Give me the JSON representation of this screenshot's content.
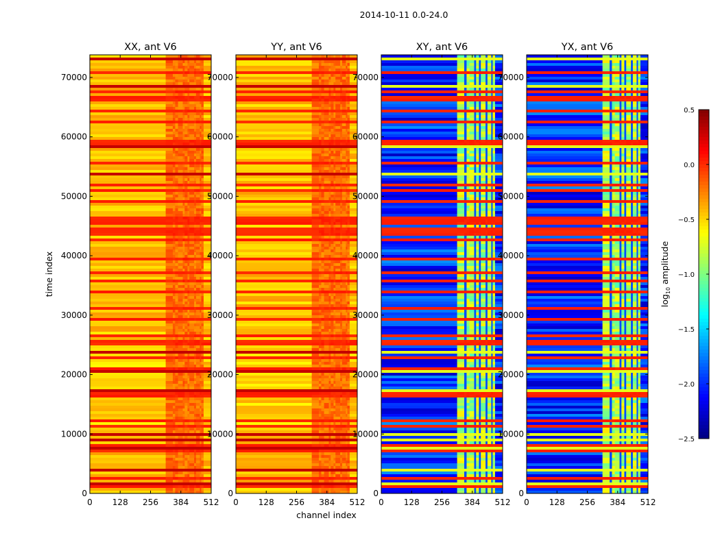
{
  "chart_data": {
    "type": "heatmap",
    "title": "2014-10-11 0.0-24.0",
    "xlabel": "channel index",
    "ylabel": "time index",
    "xlim": [
      0,
      512
    ],
    "ylim": [
      0,
      73800
    ],
    "xticks": [
      "0",
      "128",
      "256",
      "384",
      "512"
    ],
    "yticks": [
      "0",
      "10000",
      "20000",
      "30000",
      "40000",
      "50000",
      "60000",
      "70000"
    ],
    "xtick_values": [
      0,
      128,
      256,
      384,
      512
    ],
    "ytick_values": [
      0,
      10000,
      20000,
      30000,
      40000,
      50000,
      60000,
      70000
    ],
    "panels": [
      {
        "title": "XX, ant V6",
        "kind": "parallel",
        "typical_log10_amplitude": -0.4
      },
      {
        "title": "YY, ant V6",
        "kind": "parallel",
        "typical_log10_amplitude": -0.4
      },
      {
        "title": "XY, ant V6",
        "kind": "cross",
        "typical_log10_amplitude": -2.0
      },
      {
        "title": "YX, ant V6",
        "kind": "cross",
        "typical_log10_amplitude": -2.0
      }
    ],
    "colorbar": {
      "label": "log10 amplitude",
      "label_main": "log",
      "label_sub": "10",
      "label_rest": " amplitude",
      "colormap": "jet",
      "clim": [
        -2.5,
        0.5
      ],
      "ticks": [
        "0.5",
        "0.0",
        "−0.5",
        "−1.0",
        "−1.5",
        "−2.0",
        "−2.5"
      ],
      "tick_values": [
        0.5,
        0.0,
        -0.5,
        -1.0,
        -1.5,
        -2.0,
        -2.5
      ]
    }
  }
}
